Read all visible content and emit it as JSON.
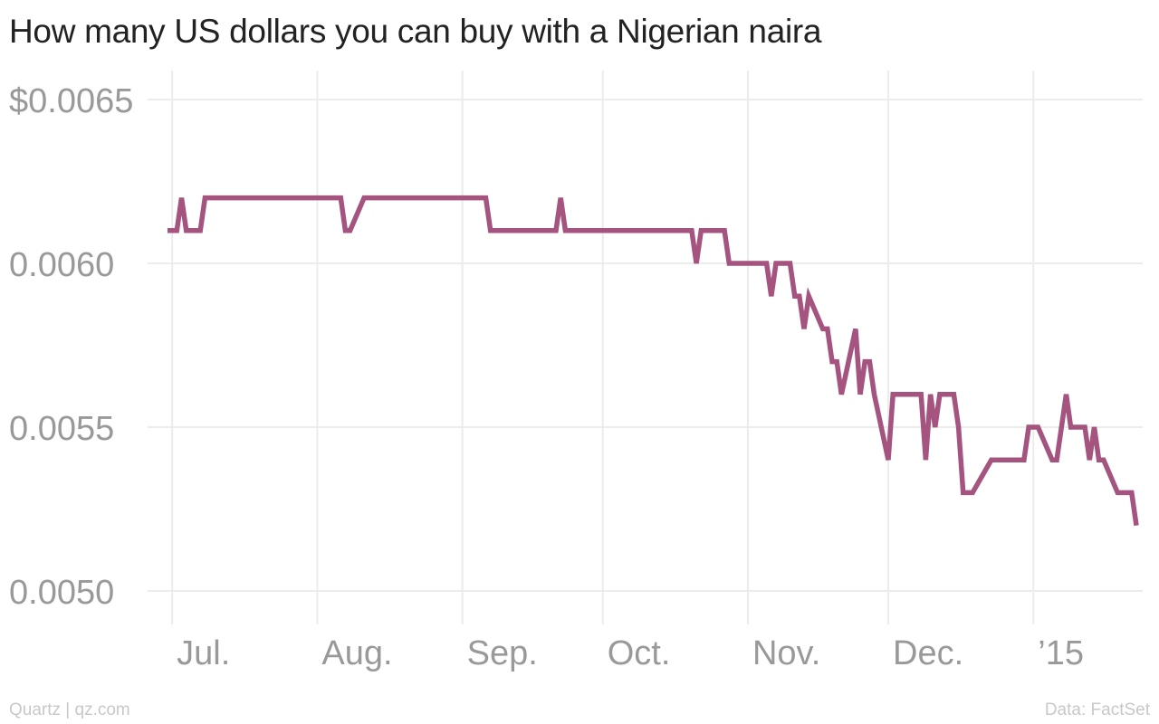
{
  "chart_data": {
    "type": "line",
    "title": "How many US dollars you can buy with a Nigerian naira",
    "xlabel": "",
    "ylabel": "",
    "ylim": [
      0.005,
      0.0065
    ],
    "y_ticks": [
      {
        "value": 0.0065,
        "label": "$0.0065"
      },
      {
        "value": 0.006,
        "label": "0.0060"
      },
      {
        "value": 0.0055,
        "label": "0.0055"
      },
      {
        "value": 0.005,
        "label": "0.0050"
      }
    ],
    "xlim": [
      "2014-06-30",
      "2015-01-23"
    ],
    "x_ticks": [
      {
        "date": "2014-07-01",
        "label": "Jul."
      },
      {
        "date": "2014-08-01",
        "label": "Aug."
      },
      {
        "date": "2014-09-01",
        "label": "Sep."
      },
      {
        "date": "2014-10-01",
        "label": "Oct."
      },
      {
        "date": "2014-11-01",
        "label": "Nov."
      },
      {
        "date": "2014-12-01",
        "label": "Dec."
      },
      {
        "date": "2015-01-01",
        "label": "’15"
      }
    ],
    "grid": true,
    "legend": "none",
    "series": [
      {
        "color": "#a4547f",
        "points": [
          [
            "2014-06-30",
            0.0061
          ],
          [
            "2014-07-01",
            0.0061
          ],
          [
            "2014-07-02",
            0.0061
          ],
          [
            "2014-07-03",
            0.0062
          ],
          [
            "2014-07-04",
            0.0061
          ],
          [
            "2014-07-07",
            0.0061
          ],
          [
            "2014-07-08",
            0.0062
          ],
          [
            "2014-07-15",
            0.0062
          ],
          [
            "2014-07-22",
            0.0062
          ],
          [
            "2014-07-29",
            0.0062
          ],
          [
            "2014-08-06",
            0.0062
          ],
          [
            "2014-08-07",
            0.0061
          ],
          [
            "2014-08-08",
            0.0061
          ],
          [
            "2014-08-11",
            0.0062
          ],
          [
            "2014-08-19",
            0.0062
          ],
          [
            "2014-08-26",
            0.0062
          ],
          [
            "2014-09-02",
            0.0062
          ],
          [
            "2014-09-06",
            0.0062
          ],
          [
            "2014-09-07",
            0.0061
          ],
          [
            "2014-09-15",
            0.0061
          ],
          [
            "2014-09-21",
            0.0061
          ],
          [
            "2014-09-22",
            0.0062
          ],
          [
            "2014-09-23",
            0.0061
          ],
          [
            "2014-10-01",
            0.0061
          ],
          [
            "2014-10-10",
            0.0061
          ],
          [
            "2014-10-20",
            0.0061
          ],
          [
            "2014-10-21",
            0.006
          ],
          [
            "2014-10-22",
            0.0061
          ],
          [
            "2014-10-27",
            0.0061
          ],
          [
            "2014-10-28",
            0.006
          ],
          [
            "2014-11-05",
            0.006
          ],
          [
            "2014-11-06",
            0.0059
          ],
          [
            "2014-11-07",
            0.006
          ],
          [
            "2014-11-10",
            0.006
          ],
          [
            "2014-11-11",
            0.0059
          ],
          [
            "2014-11-12",
            0.0059
          ],
          [
            "2014-11-13",
            0.0058
          ],
          [
            "2014-11-14",
            0.0059
          ],
          [
            "2014-11-17",
            0.0058
          ],
          [
            "2014-11-18",
            0.0058
          ],
          [
            "2014-11-19",
            0.0057
          ],
          [
            "2014-11-20",
            0.0057
          ],
          [
            "2014-11-21",
            0.0056
          ],
          [
            "2014-11-24",
            0.0058
          ],
          [
            "2014-11-25",
            0.0056
          ],
          [
            "2014-11-26",
            0.0057
          ],
          [
            "2014-11-27",
            0.0057
          ],
          [
            "2014-11-28",
            0.0056
          ],
          [
            "2014-12-01",
            0.0054
          ],
          [
            "2014-12-02",
            0.0056
          ],
          [
            "2014-12-08",
            0.0056
          ],
          [
            "2014-12-09",
            0.0054
          ],
          [
            "2014-12-10",
            0.0056
          ],
          [
            "2014-12-11",
            0.0055
          ],
          [
            "2014-12-12",
            0.0056
          ],
          [
            "2014-12-15",
            0.0056
          ],
          [
            "2014-12-16",
            0.0055
          ],
          [
            "2014-12-17",
            0.0053
          ],
          [
            "2014-12-19",
            0.0053
          ],
          [
            "2014-12-23",
            0.0054
          ],
          [
            "2014-12-30",
            0.0054
          ],
          [
            "2014-12-31",
            0.0055
          ],
          [
            "2015-01-02",
            0.0055
          ],
          [
            "2015-01-05",
            0.0054
          ],
          [
            "2015-01-06",
            0.0054
          ],
          [
            "2015-01-08",
            0.0056
          ],
          [
            "2015-01-09",
            0.0055
          ],
          [
            "2015-01-12",
            0.0055
          ],
          [
            "2015-01-13",
            0.0054
          ],
          [
            "2015-01-14",
            0.0055
          ],
          [
            "2015-01-15",
            0.0054
          ],
          [
            "2015-01-16",
            0.0054
          ],
          [
            "2015-01-19",
            0.0053
          ],
          [
            "2015-01-22",
            0.0053
          ],
          [
            "2015-01-23",
            0.0052
          ]
        ]
      }
    ]
  },
  "footer": {
    "source_left": "Quartz | qz.com",
    "source_right": "Data: FactSet"
  }
}
